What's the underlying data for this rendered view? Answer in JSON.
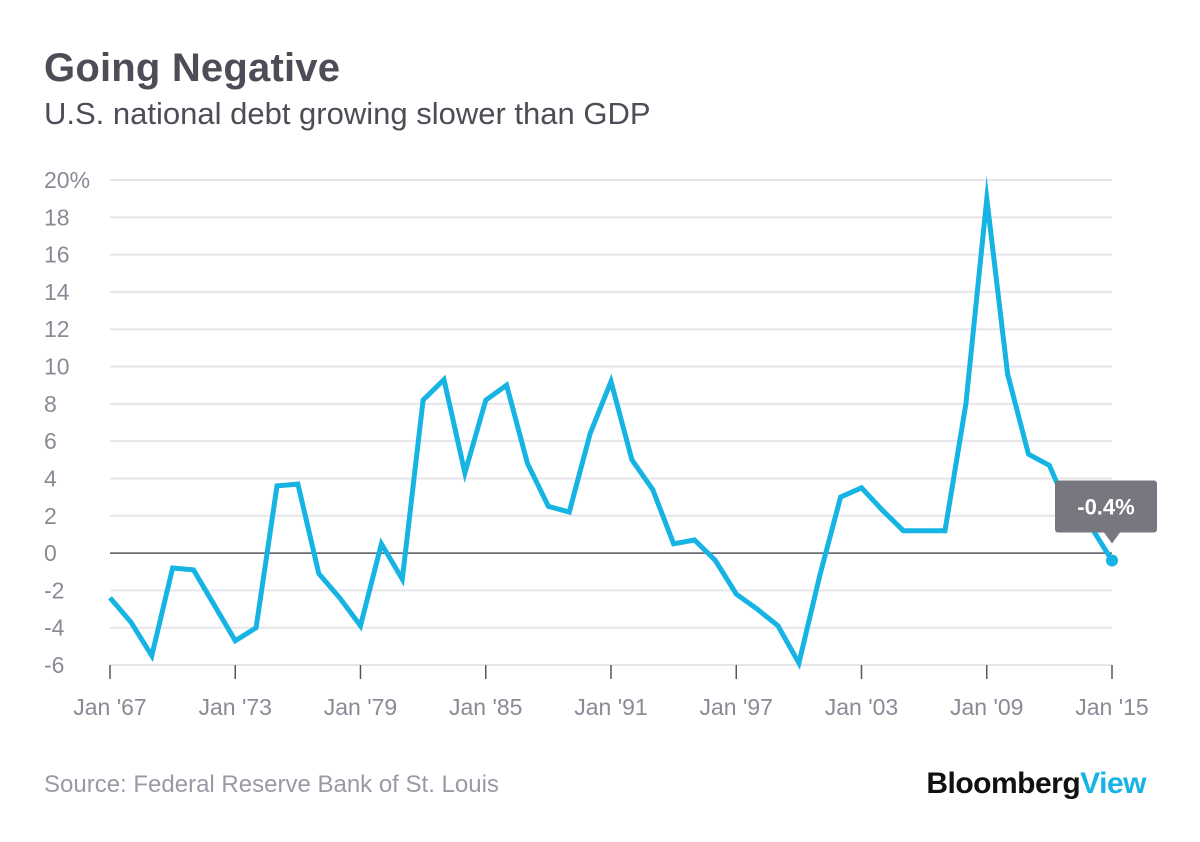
{
  "header": {
    "title": "Going Negative",
    "subtitle": "U.S. national debt growing slower than GDP"
  },
  "footer": {
    "source": "Source: Federal Reserve Bank of St. Louis",
    "brand_primary": "Bloomberg",
    "brand_secondary": "View"
  },
  "colors": {
    "line": "#15b4e3",
    "grid": "#e6e6ea",
    "zero_line": "#55555f",
    "callout_bg": "#77777f",
    "text": "#4d4d57"
  },
  "chart_data": {
    "type": "line",
    "title": "Going Negative",
    "subtitle": "U.S. national debt growing slower than GDP",
    "xlabel": "",
    "ylabel": "",
    "ylim": [
      -6,
      20
    ],
    "xlim": [
      1967,
      2015
    ],
    "grid": true,
    "y_ticks": [
      {
        "value": 20,
        "label": "20%"
      },
      {
        "value": 18,
        "label": "18"
      },
      {
        "value": 16,
        "label": "16"
      },
      {
        "value": 14,
        "label": "14"
      },
      {
        "value": 12,
        "label": "12"
      },
      {
        "value": 10,
        "label": "10"
      },
      {
        "value": 8,
        "label": "8"
      },
      {
        "value": 6,
        "label": "6"
      },
      {
        "value": 4,
        "label": "4"
      },
      {
        "value": 2,
        "label": "2"
      },
      {
        "value": 0,
        "label": "0"
      },
      {
        "value": -2,
        "label": "-2"
      },
      {
        "value": -4,
        "label": "-4"
      },
      {
        "value": -6,
        "label": "-6"
      }
    ],
    "x_ticks": [
      {
        "value": 1967,
        "label": "Jan '67"
      },
      {
        "value": 1973,
        "label": "Jan '73"
      },
      {
        "value": 1979,
        "label": "Jan '79"
      },
      {
        "value": 1985,
        "label": "Jan '85"
      },
      {
        "value": 1991,
        "label": "Jan '91"
      },
      {
        "value": 1997,
        "label": "Jan '97"
      },
      {
        "value": 2003,
        "label": "Jan '03"
      },
      {
        "value": 2009,
        "label": "Jan '09"
      },
      {
        "value": 2015,
        "label": "Jan '15"
      }
    ],
    "x": [
      1967,
      1968,
      1969,
      1970,
      1971,
      1972,
      1973,
      1974,
      1975,
      1976,
      1977,
      1978,
      1979,
      1980,
      1981,
      1982,
      1983,
      1984,
      1985,
      1986,
      1987,
      1988,
      1989,
      1990,
      1991,
      1992,
      1993,
      1994,
      1995,
      1996,
      1997,
      1998,
      1999,
      2000,
      2001,
      2002,
      2003,
      2004,
      2005,
      2006,
      2007,
      2008,
      2009,
      2010,
      2011,
      2012,
      2013,
      2014,
      2015
    ],
    "values": [
      -2.4,
      -3.7,
      -5.5,
      -0.8,
      -0.9,
      -2.8,
      -4.7,
      -4.0,
      3.6,
      3.7,
      -1.1,
      -2.4,
      -3.9,
      0.5,
      -1.4,
      8.2,
      9.3,
      4.3,
      8.2,
      9.0,
      4.8,
      2.5,
      2.2,
      6.4,
      9.2,
      5.0,
      3.4,
      0.5,
      0.7,
      -0.4,
      -2.2,
      -3.0,
      -3.9,
      -5.9,
      -1.2,
      3.0,
      3.5,
      2.3,
      1.2,
      1.2,
      1.2,
      8.0,
      19.0,
      9.6,
      5.3,
      4.7,
      2.1,
      1.4,
      -0.4
    ],
    "annotation": {
      "x": 2015,
      "y": -0.4,
      "label": "-0.4%"
    }
  }
}
